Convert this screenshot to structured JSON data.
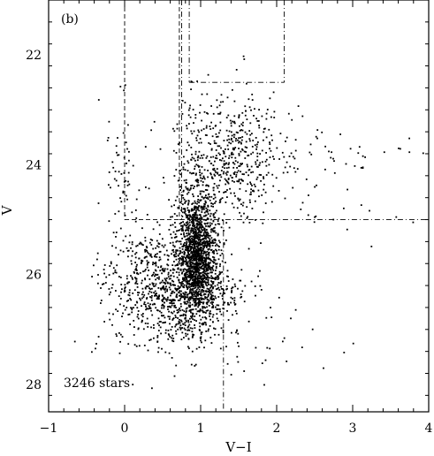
{
  "chart_data": {
    "type": "scatter",
    "panel_label": "(b)",
    "annotation": "3246 stars",
    "xlabel": "V−I",
    "ylabel": "V",
    "xlim": [
      -1,
      4
    ],
    "ylim": [
      28.5,
      21
    ],
    "y_inverted": true,
    "x_ticks": [
      -1,
      0,
      1,
      2,
      3,
      4
    ],
    "x_tick_labels": [
      "−1",
      "0",
      "1",
      "2",
      "3",
      "4"
    ],
    "y_ticks": [
      22,
      24,
      26,
      28
    ],
    "y_tick_labels": [
      "22",
      "24",
      "26",
      "28"
    ],
    "grid": false,
    "star_count": 3246,
    "regions": [
      {
        "name": "blue-box",
        "style": "dashed",
        "x": [
          0.0,
          0.72
        ],
        "y": [
          21.0,
          25.0
        ]
      },
      {
        "name": "red-top-box",
        "style": "dash-dot",
        "x": [
          0.85,
          2.1
        ],
        "y": [
          21.0,
          22.5
        ]
      }
    ],
    "lines": [
      {
        "name": "vertical-left",
        "style": "dash-dot",
        "x": [
          0.75,
          0.75
        ],
        "y": [
          21.0,
          25.0
        ]
      },
      {
        "name": "horizontal-cut",
        "style": "dash-dot",
        "x": [
          0.72,
          4.0
        ],
        "y": [
          25.0,
          25.0
        ]
      },
      {
        "name": "vertical-cut",
        "style": "dash-dot",
        "x": [
          1.3,
          1.3
        ],
        "y": [
          25.0,
          28.5
        ]
      }
    ],
    "point_clusters": [
      {
        "name": "main-sequence-core",
        "n": 1500,
        "x_mean": 0.95,
        "x_sd": 0.13,
        "y_mean": 25.6,
        "y_sd": 0.55
      },
      {
        "name": "lower-main",
        "n": 650,
        "x_mean": 0.8,
        "x_sd": 0.35,
        "y_mean": 26.4,
        "y_sd": 0.45
      },
      {
        "name": "blue-plume",
        "n": 320,
        "x_mean": 0.25,
        "x_sd": 0.3,
        "y_mean": 26.1,
        "y_sd": 0.55
      },
      {
        "name": "red-giant-branch",
        "n": 560,
        "x_mean": 1.35,
        "x_sd": 0.35,
        "y_mean": 23.9,
        "y_sd": 0.6
      },
      {
        "name": "red-tail",
        "n": 80,
        "x_mean": 2.5,
        "x_sd": 0.55,
        "y_mean": 24.0,
        "y_sd": 0.5
      },
      {
        "name": "blue-loop",
        "n": 60,
        "x_mean": -0.05,
        "x_sd": 0.12,
        "y_mean": 24.2,
        "y_sd": 0.7
      },
      {
        "name": "faint-scatter",
        "n": 76,
        "x_mean": 1.2,
        "x_sd": 0.8,
        "y_mean": 27.0,
        "y_sd": 0.5
      }
    ]
  }
}
